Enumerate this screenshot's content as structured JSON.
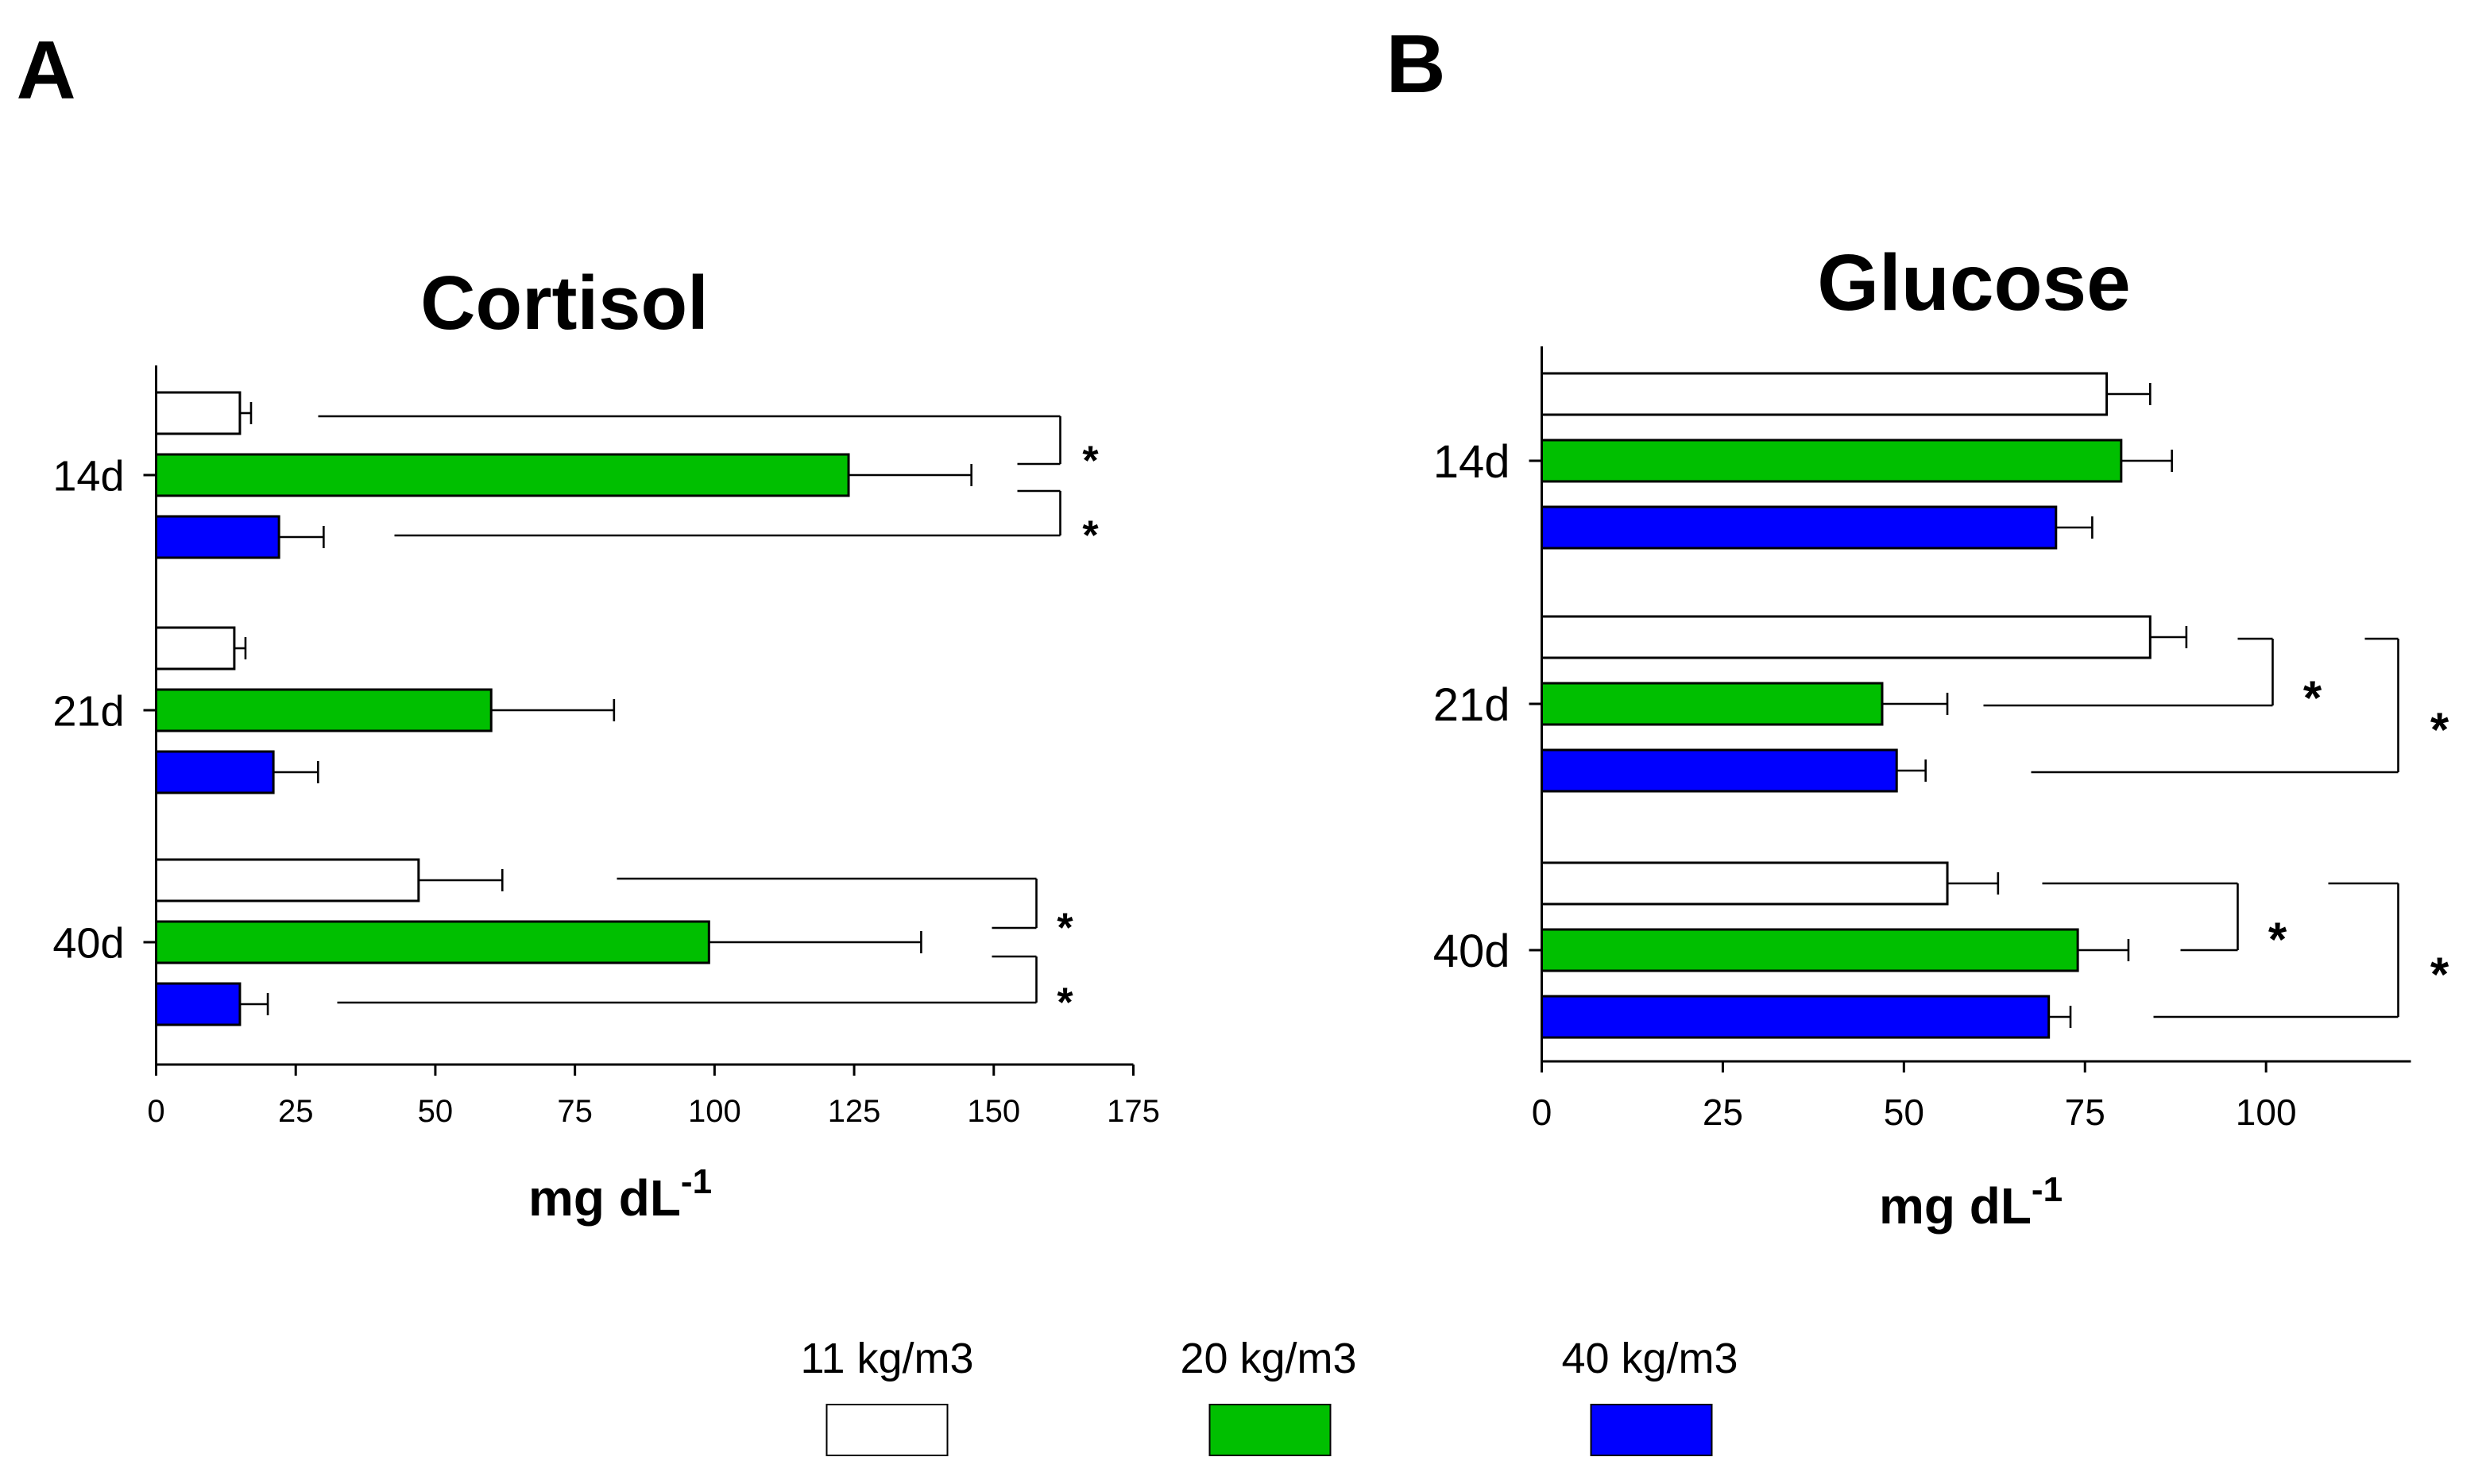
{
  "panels": {
    "A": {
      "letter": "A"
    },
    "B": {
      "letter": "B"
    }
  },
  "legend": {
    "items": [
      {
        "label": "11 kg/m3",
        "color": "#ffffff"
      },
      {
        "label": "20 kg/m3",
        "color": "#00bf00"
      },
      {
        "label": "40 kg/m3",
        "color": "#0000ff"
      }
    ]
  },
  "chart_data": [
    {
      "type": "bar",
      "orientation": "horizontal",
      "title": "Cortisol",
      "xlabel": "mg dL",
      "xlabel_sup": "-1",
      "xlim": [
        0,
        175
      ],
      "xticks": [
        0,
        25,
        50,
        75,
        100,
        125,
        150,
        175
      ],
      "categories": [
        "14d",
        "21d",
        "40d"
      ],
      "series": [
        {
          "name": "11 kg/m3",
          "color": "#ffffff",
          "values": [
            15,
            14,
            47
          ],
          "errors": [
            2,
            2,
            15
          ]
        },
        {
          "name": "20 kg/m3",
          "color": "#00bf00",
          "values": [
            124,
            60,
            99
          ],
          "errors": [
            22,
            22,
            38
          ]
        },
        {
          "name": "40 kg/m3",
          "color": "#0000ff",
          "values": [
            22,
            21,
            15
          ],
          "errors": [
            8,
            8,
            5
          ]
        }
      ],
      "significance": [
        {
          "category": "14d",
          "pairs": [
            [
              "11 kg/m3",
              "20 kg/m3"
            ],
            [
              "20 kg/m3",
              "40 kg/m3"
            ]
          ],
          "mark": "*"
        },
        {
          "category": "40d",
          "pairs": [
            [
              "11 kg/m3",
              "20 kg/m3"
            ],
            [
              "20 kg/m3",
              "40 kg/m3"
            ]
          ],
          "mark": "*"
        }
      ]
    },
    {
      "type": "bar",
      "orientation": "horizontal",
      "title": "Glucose",
      "xlabel": "mg dL",
      "xlabel_sup": "-1",
      "xlim": [
        0,
        120
      ],
      "xticks": [
        0,
        25,
        50,
        75,
        100
      ],
      "categories": [
        "14d",
        "21d",
        "40d"
      ],
      "series": [
        {
          "name": "11 kg/m3",
          "color": "#ffffff",
          "values": [
            78,
            84,
            56
          ],
          "errors": [
            6,
            5,
            7
          ]
        },
        {
          "name": "20 kg/m3",
          "color": "#00bf00",
          "values": [
            80,
            47,
            74
          ],
          "errors": [
            7,
            9,
            7
          ]
        },
        {
          "name": "40 kg/m3",
          "color": "#0000ff",
          "values": [
            71,
            49,
            70
          ],
          "errors": [
            5,
            4,
            3
          ]
        }
      ],
      "significance": [
        {
          "category": "21d",
          "pairs": [
            [
              "11 kg/m3",
              "20 kg/m3"
            ],
            [
              "11 kg/m3",
              "40 kg/m3"
            ]
          ],
          "mark": "*"
        },
        {
          "category": "40d",
          "pairs": [
            [
              "11 kg/m3",
              "20 kg/m3"
            ],
            [
              "11 kg/m3",
              "40 kg/m3"
            ]
          ],
          "mark": "*"
        }
      ]
    }
  ]
}
